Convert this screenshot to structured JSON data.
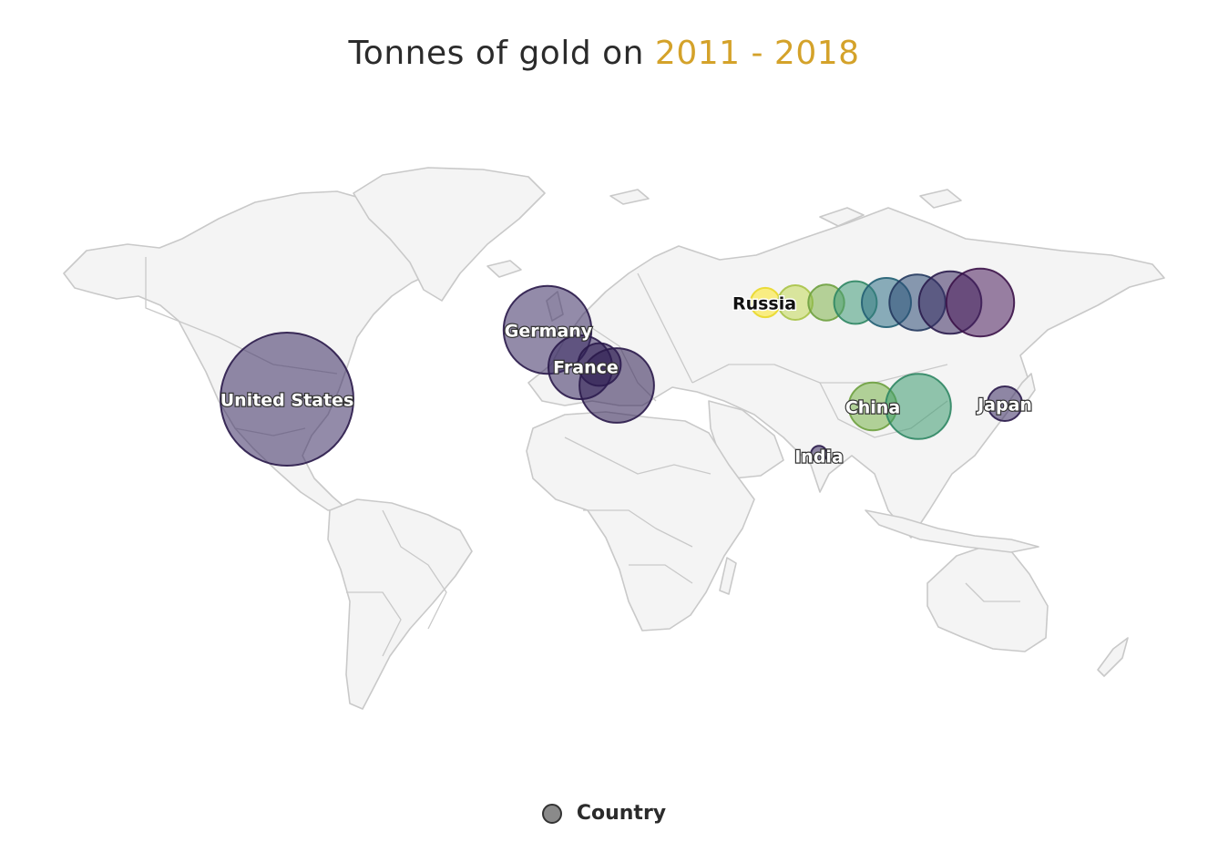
{
  "title": {
    "prefix": "Tonnes of gold on ",
    "highlight": "2011 - 2018"
  },
  "legend": {
    "label": "Country",
    "color": "#8a8a8a"
  },
  "colors": {
    "land_fill": "#f4f4f4",
    "border": "#c9c9c9",
    "title_highlight": "#d4a22a"
  },
  "chart_data": {
    "type": "map-bubble",
    "title": "Tonnes of gold on 2011 - 2018",
    "legend": [
      "Country"
    ],
    "bubble_labels": [
      "United States",
      "Germany",
      "France",
      "Russia",
      "China",
      "Japan",
      "India"
    ],
    "year_color_scale": {
      "2011": "#fde725",
      "2012": "#b5de2b",
      "2013": "#6ece58",
      "2014": "#35b779",
      "2015": "#1f9e89",
      "2016": "#26828e",
      "2017": "#31688e",
      "2018": "#440154"
    },
    "bubble_groups": [
      {
        "country": "United States",
        "region": "north-america",
        "bubbles": [
          {
            "color": "#3b2c62",
            "size": 1.0
          }
        ]
      },
      {
        "country": "Germany",
        "region": "western-europe",
        "bubbles": [
          {
            "color": "#3b2c62",
            "size": 0.66
          }
        ]
      },
      {
        "country": "France",
        "region": "western-europe",
        "bubbles": [
          {
            "color": "#3b2c62",
            "size": 0.48
          },
          {
            "color": "#2d1e52",
            "size": 0.32
          },
          {
            "color": "#2d1e52",
            "size": 0.56
          }
        ]
      },
      {
        "country": "Russia",
        "region": "russia",
        "bubbles": [
          {
            "color": "#fde725",
            "size": 0.22
          },
          {
            "color": "#c2d856",
            "size": 0.26
          },
          {
            "color": "#7fb34a",
            "size": 0.27
          },
          {
            "color": "#3f9a78",
            "size": 0.32
          },
          {
            "color": "#2f6f86",
            "size": 0.37
          },
          {
            "color": "#2c4a75",
            "size": 0.42
          },
          {
            "color": "#3a2a60",
            "size": 0.47
          },
          {
            "color": "#4b1d5c",
            "size": 0.51
          }
        ]
      },
      {
        "country": "China",
        "region": "east-asia",
        "bubbles": [
          {
            "color": "#79b34a",
            "size": 0.36
          },
          {
            "color": "#3c9a6f",
            "size": 0.49
          }
        ]
      },
      {
        "country": "Japan",
        "region": "east-asia",
        "bubbles": [
          {
            "color": "#3b2c62",
            "size": 0.26
          }
        ]
      },
      {
        "country": "India",
        "region": "south-asia",
        "bubbles": [
          {
            "color": "#3b2c62",
            "size": 0.12
          }
        ]
      }
    ]
  }
}
